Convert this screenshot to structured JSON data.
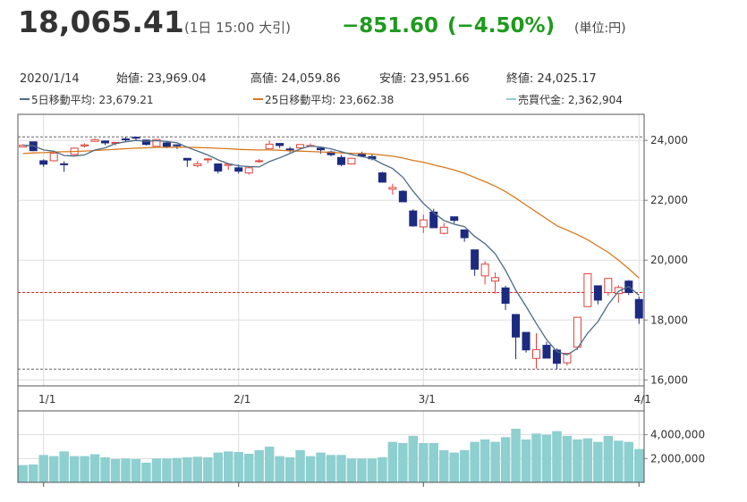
{
  "header": {
    "price": "18,065.41",
    "time": "(1日 15:00 大引)",
    "change": "−851.60",
    "change_pct": "(−4.50%)",
    "unit": "(単位:円)"
  },
  "info": {
    "date": "2020/1/14",
    "open": "始値: 23,969.04",
    "high": "高値: 24,059.86",
    "low": "安値: 23,951.66",
    "close": "終値: 24,025.17"
  },
  "chart_data": [
    {
      "type": "candlestick",
      "categories": [
        null,
        null,
        null,
        null,
        null,
        null,
        null,
        null,
        null,
        null,
        null,
        null,
        null,
        null,
        null,
        null,
        null,
        null,
        null,
        null,
        null,
        null,
        null,
        null,
        null,
        null,
        null,
        null,
        null,
        null,
        null,
        null,
        null,
        null,
        null,
        null,
        null,
        null,
        null,
        null,
        null,
        null,
        null,
        null,
        null,
        null,
        null,
        null,
        null,
        null,
        null,
        null,
        null,
        null,
        null,
        null,
        null,
        null,
        null,
        null,
        null
      ],
      "ohlc": [
        [
          23782,
          23870,
          23772,
          23837.72
        ],
        [
          23952,
          23952,
          23638,
          23656.62
        ],
        [
          23319,
          23365,
          23115,
          23204.86
        ],
        [
          23320,
          23577,
          23299,
          23575.72
        ],
        [
          23217,
          23303,
          22951,
          23204.76
        ],
        [
          23530,
          23767,
          23506,
          23739.87
        ],
        [
          23813,
          23903,
          23761,
          23850.57
        ],
        [
          23969.04,
          24059.86,
          23951.66,
          24025.17
        ],
        [
          23977,
          23997,
          23843,
          23916.58
        ],
        [
          23922,
          23942,
          23826,
          23933.13
        ],
        [
          24050,
          24116,
          23970,
          24041.26
        ],
        [
          24103,
          24115.95,
          24018,
          24083.51
        ],
        [
          24010,
          24027,
          23831,
          23864.56
        ],
        [
          23800,
          24040,
          23797,
          24031.35
        ],
        [
          23917,
          23982,
          23732,
          23795.44
        ],
        [
          23850,
          23867,
          23708,
          23827.18
        ],
        [
          23400,
          23400,
          23115,
          23343.51
        ],
        [
          23155,
          23317,
          23103,
          23215.71
        ],
        [
          23353,
          23403,
          23238,
          23379.4
        ],
        [
          23214,
          23226,
          22892,
          22977.75
        ],
        [
          23167,
          23244,
          23010,
          23205.18
        ],
        [
          23084,
          23194,
          22892,
          22971.94
        ],
        [
          22911,
          23145,
          22855,
          23084.59
        ],
        [
          23307,
          23380,
          23245,
          23319.56
        ],
        [
          23725,
          23995,
          23713,
          23873.59
        ],
        [
          23897,
          23902,
          23746,
          23827.98
        ],
        [
          23712,
          23788,
          23596,
          23685.98
        ],
        [
          23749,
          23869,
          23720,
          23861.21
        ],
        [
          23818,
          23903,
          23785,
          23827.73
        ],
        [
          23740,
          23744,
          23557,
          23687.59
        ],
        [
          23612,
          23659,
          23464,
          23523.24
        ],
        [
          23429,
          23511,
          23138,
          23193.8
        ],
        [
          23213,
          23426,
          23191,
          23400.7
        ],
        [
          23562,
          23622,
          23443,
          23479.15
        ],
        [
          23458,
          23540,
          23334,
          23386.74
        ],
        [
          22914,
          22952,
          22587,
          22605.41
        ],
        [
          22370,
          22550,
          22187,
          22426.19
        ],
        [
          22300,
          22337,
          21948,
          21948.23
        ],
        [
          21643,
          21702,
          21116,
          21142.96
        ],
        [
          21112,
          21520,
          20906,
          21344.08
        ],
        [
          21606,
          21719,
          21082,
          21082.73
        ],
        [
          20896,
          21245,
          20857,
          21100.06
        ],
        [
          21447,
          21448,
          21227,
          21329.12
        ],
        [
          21009,
          21010,
          20613,
          20749.75
        ],
        [
          20343,
          20347,
          19474,
          19698.76
        ],
        [
          19474,
          19970,
          19188,
          19867.12
        ],
        [
          19300,
          19590,
          18880,
          19416.06
        ],
        [
          19072,
          19140,
          18339,
          18559.63
        ],
        [
          18184,
          18184,
          16690,
          17431.05
        ],
        [
          17586,
          17586,
          16914,
          17002.04
        ],
        [
          16718,
          17557,
          16378,
          17011.53
        ],
        [
          17155,
          17275,
          16726,
          16726.55
        ],
        [
          16995,
          17049,
          16358.19,
          16552.83
        ],
        [
          16570,
          16887,
          16478,
          16887.78
        ],
        [
          17094,
          18092,
          16995,
          18092.35
        ],
        [
          18446,
          19564,
          18446,
          19546.63
        ],
        [
          19143,
          19143,
          18522,
          18664.6
        ],
        [
          18915,
          19389,
          18813,
          19389.43
        ],
        [
          18884,
          19162,
          18578,
          19084.97
        ],
        [
          19300,
          19336,
          18834,
          18917.01
        ],
        [
          18686,
          18784,
          17871,
          18065.41
        ]
      ],
      "up_color": "#e0403a",
      "down_color": "#1c2a80",
      "series": [
        {
          "name": "5日移動平均: 23,679.21",
          "color": "#4d6b85",
          "values": [
            23840,
            23820,
            23681,
            23640,
            23496,
            23476,
            23515,
            23679.21,
            23748,
            23893,
            23953,
            24000,
            23968,
            23991,
            23963,
            23920,
            23772,
            23643,
            23512,
            23349,
            23224,
            23150,
            23124,
            23112,
            23291,
            23416,
            23559,
            23714,
            23815,
            23778,
            23717,
            23619,
            23527,
            23457,
            23397,
            23213,
            23060,
            22769,
            22302,
            21893,
            21589,
            21324,
            21200,
            21121,
            20792,
            20549,
            20212,
            19658,
            18995,
            18455,
            17884,
            17346,
            16945,
            16836,
            17054,
            17561,
            17949,
            18516,
            18956,
            19121,
            18824
          ]
        },
        {
          "name": "25日移動平均: 23,662.38",
          "color": "#d9781c",
          "values": [
            23560,
            23580,
            23590,
            23610,
            23620,
            23630,
            23645,
            23662.38,
            23680,
            23700,
            23720,
            23740,
            23750,
            23765,
            23770,
            23775,
            23770,
            23760,
            23750,
            23735,
            23720,
            23700,
            23690,
            23680,
            23680,
            23670,
            23650,
            23640,
            23630,
            23615,
            23600,
            23580,
            23570,
            23560,
            23545,
            23510,
            23470,
            23410,
            23330,
            23270,
            23180,
            23100,
            23010,
            22900,
            22760,
            22620,
            22470,
            22290,
            22070,
            21840,
            21610,
            21380,
            21150,
            21000,
            20850,
            20680,
            20470,
            20260,
            20000,
            19710,
            19400
          ]
        }
      ],
      "ylim": [
        15800,
        24870
      ],
      "yticks": [
        {
          "value": 16000,
          "label": "16,000"
        },
        {
          "value": 18000,
          "label": "18,000"
        },
        {
          "value": 20000,
          "label": "20,000"
        },
        {
          "value": 22000,
          "label": "22,000"
        },
        {
          "value": 24000,
          "label": "24,000"
        }
      ],
      "xticks": [
        {
          "value": 2,
          "label": "1/1"
        },
        {
          "value": 21,
          "label": "2/1"
        },
        {
          "value": 39,
          "label": "3/1"
        },
        {
          "value": 60,
          "label": "4/1"
        }
      ],
      "reference_lines": [
        {
          "value": 24115.95,
          "color": "#666666"
        },
        {
          "value": 16358.19,
          "color": "#666666"
        },
        {
          "value": 18917.01,
          "color": "#e02020"
        }
      ],
      "grid": true
    },
    {
      "type": "bar",
      "categories": [
        null,
        null,
        null,
        null,
        null,
        null,
        null,
        null,
        null,
        null,
        null,
        null,
        null,
        null,
        null,
        null,
        null,
        null,
        null,
        null,
        null,
        null,
        null,
        null,
        null,
        null,
        null,
        null,
        null,
        null,
        null,
        null,
        null,
        null,
        null,
        null,
        null,
        null,
        null,
        null,
        null,
        null,
        null,
        null,
        null,
        null,
        null,
        null,
        null,
        null,
        null,
        null,
        null,
        null,
        null,
        null,
        null,
        null,
        null,
        null,
        null
      ],
      "series": [
        {
          "name": "売買代金: 2,362,904",
          "color": "#8ecfd0",
          "values": [
            1450000,
            1500000,
            2300000,
            2200000,
            2600000,
            2200000,
            2200000,
            2362904,
            2100000,
            1950000,
            2000000,
            1950000,
            1650000,
            2000000,
            2000000,
            2050000,
            2100000,
            2150000,
            2100000,
            2500000,
            2600000,
            2550000,
            2400000,
            2700000,
            3000000,
            2200000,
            2100000,
            2700000,
            2200000,
            2500000,
            2300000,
            2300000,
            2000000,
            2000000,
            2000000,
            2100000,
            3400000,
            3300000,
            3900000,
            3300000,
            3300000,
            2700000,
            2500000,
            2700000,
            3400000,
            3600000,
            3400000,
            3800000,
            4500000,
            3600000,
            4100000,
            4000000,
            4300000,
            3900000,
            3600000,
            3700000,
            3400000,
            3900000,
            3500000,
            3400000,
            2800000
          ]
        }
      ],
      "ylim": [
        0,
        6000000
      ],
      "yticks": [
        {
          "value": 2000000,
          "label": "2,000,000"
        },
        {
          "value": 4000000,
          "label": "4,000,000"
        }
      ],
      "grid": true
    }
  ]
}
